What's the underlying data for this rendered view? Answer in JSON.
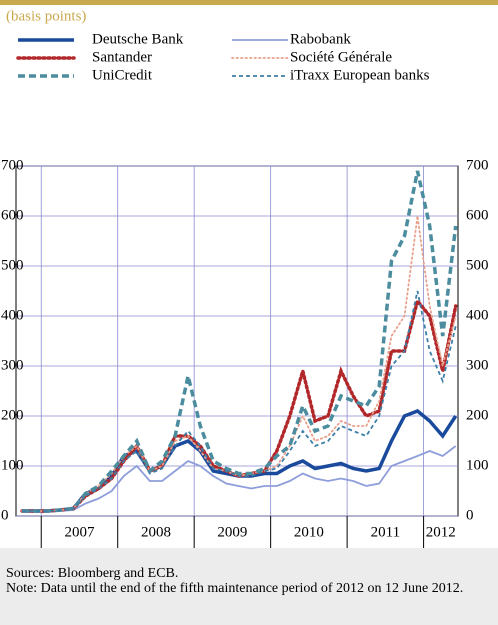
{
  "chart_data": {
    "type": "line",
    "title": "(basis points)",
    "x": [
      2006.75,
      2006.92,
      2007.08,
      2007.25,
      2007.42,
      2007.58,
      2007.75,
      2007.92,
      2008.08,
      2008.25,
      2008.42,
      2008.58,
      2008.75,
      2008.92,
      2009.08,
      2009.25,
      2009.42,
      2009.58,
      2009.75,
      2009.92,
      2010.08,
      2010.25,
      2010.42,
      2010.58,
      2010.75,
      2010.92,
      2011.08,
      2011.25,
      2011.42,
      2011.58,
      2011.75,
      2011.92,
      2012.08,
      2012.25,
      2012.42
    ],
    "xlim": [
      2006.67,
      2012.45
    ],
    "xticks": [
      2007,
      2008,
      2009,
      2010,
      2011,
      2012
    ],
    "ylim": [
      0,
      700
    ],
    "yticks": [
      0,
      100,
      200,
      300,
      400,
      500,
      600,
      700
    ],
    "y2lim": [
      0,
      700
    ],
    "y2ticks": [
      0,
      100,
      200,
      300,
      400,
      500,
      600,
      700
    ],
    "grid": true,
    "series": [
      {
        "name": "Deutsche Bank",
        "color": "#1a4a9c",
        "style": "solid",
        "weight": "heavy",
        "values": [
          10,
          10,
          10,
          12,
          15,
          45,
          55,
          80,
          120,
          130,
          90,
          100,
          140,
          150,
          130,
          90,
          85,
          80,
          80,
          85,
          85,
          100,
          110,
          95,
          100,
          105,
          95,
          90,
          95,
          150,
          200,
          210,
          190,
          160,
          200
        ]
      },
      {
        "name": "Rabobank",
        "color": "#8e9edb",
        "style": "solid",
        "weight": "light",
        "values": [
          8,
          8,
          8,
          10,
          12,
          25,
          35,
          50,
          80,
          100,
          70,
          70,
          90,
          110,
          100,
          80,
          65,
          60,
          55,
          60,
          60,
          70,
          85,
          75,
          70,
          75,
          70,
          60,
          65,
          100,
          110,
          120,
          130,
          120,
          140
        ]
      },
      {
        "name": "Santander",
        "color": "#b2282a",
        "style": "dotted",
        "weight": "heavy",
        "values": [
          10,
          10,
          10,
          12,
          15,
          40,
          55,
          75,
          110,
          140,
          90,
          100,
          160,
          160,
          140,
          100,
          90,
          80,
          85,
          90,
          130,
          200,
          290,
          190,
          200,
          290,
          240,
          200,
          210,
          330,
          330,
          430,
          400,
          290,
          420
        ]
      },
      {
        "name": "Société Générale",
        "color": "#e8a08a",
        "style": "dotted",
        "weight": "light",
        "values": [
          10,
          10,
          10,
          12,
          15,
          45,
          60,
          85,
          120,
          140,
          90,
          100,
          150,
          160,
          130,
          95,
          90,
          80,
          85,
          90,
          100,
          140,
          200,
          150,
          160,
          190,
          180,
          180,
          230,
          360,
          400,
          600,
          420,
          300,
          400
        ]
      },
      {
        "name": "UniCredit",
        "color": "#4b8c9e",
        "style": "dashed",
        "weight": "heavy",
        "values": [
          10,
          10,
          10,
          12,
          15,
          45,
          60,
          90,
          120,
          150,
          90,
          110,
          160,
          280,
          180,
          110,
          95,
          85,
          85,
          95,
          120,
          140,
          220,
          170,
          180,
          240,
          230,
          220,
          260,
          510,
          560,
          690,
          580,
          360,
          580
        ]
      },
      {
        "name": "iTraxx European banks",
        "color": "#3d7fa6",
        "style": "dashed",
        "weight": "light",
        "values": [
          10,
          10,
          10,
          12,
          15,
          40,
          55,
          75,
          110,
          130,
          85,
          95,
          140,
          170,
          140,
          95,
          90,
          80,
          80,
          90,
          95,
          130,
          170,
          140,
          150,
          180,
          170,
          160,
          200,
          300,
          330,
          450,
          330,
          270,
          380
        ]
      }
    ],
    "sources": "Sources: Bloomberg and ECB.",
    "note": "Note: Data until the end of the fifth maintenance period of 2012 on 12 June 2012."
  }
}
